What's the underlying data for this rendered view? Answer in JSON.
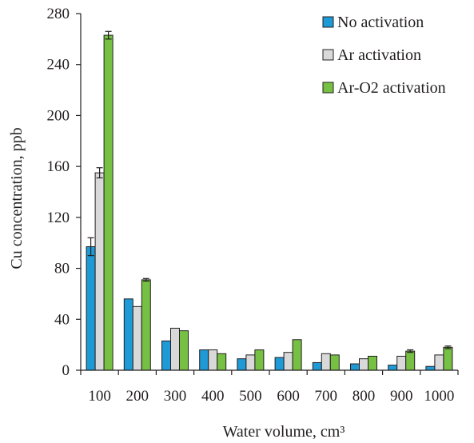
{
  "chart_data": {
    "type": "bar",
    "xlabel": "Water volume, cm³",
    "ylabel": "Cu concentration, ppb",
    "ylim": [
      0,
      280
    ],
    "yticks": [
      "0",
      "40",
      "80",
      "120",
      "160",
      "200",
      "240",
      "280"
    ],
    "categories": [
      "100",
      "200",
      "300",
      "400",
      "500",
      "600",
      "700",
      "800",
      "900",
      "1000"
    ],
    "series": [
      {
        "name": "No activation",
        "color": "#1e9ad6",
        "values": [
          97,
          56,
          23,
          16,
          9,
          10,
          6,
          5,
          4,
          3
        ],
        "errors": [
          7,
          0,
          0,
          0,
          0,
          0,
          0,
          0,
          0,
          0
        ]
      },
      {
        "name": "Ar activation",
        "color": "#d9d9d9",
        "values": [
          155,
          50,
          33,
          16,
          12,
          14,
          13,
          9,
          11,
          12
        ],
        "errors": [
          4,
          0,
          0,
          0,
          0,
          0,
          0,
          0,
          0,
          0
        ]
      },
      {
        "name": "Ar-O2 activation",
        "color": "#76c043",
        "values": [
          263,
          71,
          31,
          13,
          16,
          24,
          12,
          11,
          15,
          18
        ],
        "errors": [
          3,
          1,
          0,
          0,
          0,
          0,
          0,
          0,
          1,
          1
        ]
      }
    ],
    "legend_position": "top-right",
    "grid": false
  }
}
